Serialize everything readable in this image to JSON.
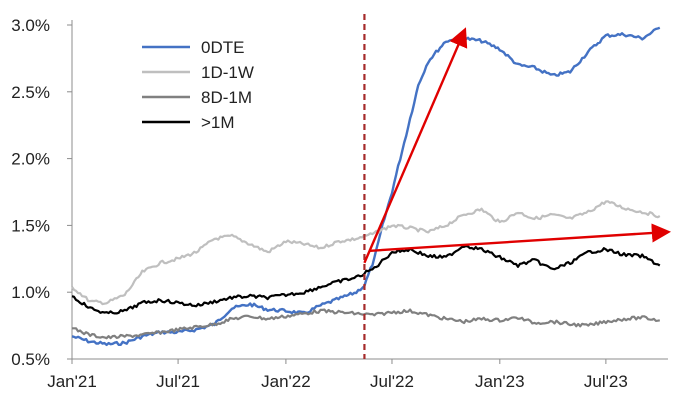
{
  "chart_data": {
    "type": "line",
    "ylim": [
      0.5,
      3.0
    ],
    "ytick_labels": [
      "0.5%",
      "1.0%",
      "1.5%",
      "2.0%",
      "2.5%",
      "3.0%"
    ],
    "ytick_values": [
      0.5,
      1.0,
      1.5,
      2.0,
      2.5,
      3.0
    ],
    "xlim": [
      "2021-01-01",
      "2023-10-15"
    ],
    "xtick_labels": [
      "Jan'21",
      "Jul'21",
      "Jan'22",
      "Jul'22",
      "Jan'23",
      "Jul'23"
    ],
    "xtick_dates": [
      "2021-01-01",
      "2021-07-01",
      "2022-01-01",
      "2022-07-01",
      "2023-01-01",
      "2023-07-01"
    ],
    "grid": false,
    "legend_position": "top-left",
    "vertical_marker": {
      "date": "2022-05-15",
      "color": "#a52a2a",
      "style": "dashed"
    },
    "arrows": [
      {
        "from": {
          "date": "2022-05-15",
          "value": 1.22
        },
        "to": {
          "date": "2022-11-01",
          "value": 2.95
        },
        "color": "#e00000"
      },
      {
        "from": {
          "date": "2022-05-25",
          "value": 1.31
        },
        "to": {
          "date": "2023-10-12",
          "value": 1.45
        },
        "color": "#e00000"
      }
    ],
    "series": [
      {
        "name": "0DTE",
        "color": "#4472c4",
        "points": [
          [
            "2021-01-01",
            0.67
          ],
          [
            "2021-02-01",
            0.63
          ],
          [
            "2021-03-01",
            0.61
          ],
          [
            "2021-04-01",
            0.62
          ],
          [
            "2021-05-01",
            0.67
          ],
          [
            "2021-06-01",
            0.7
          ],
          [
            "2021-07-01",
            0.7
          ],
          [
            "2021-08-01",
            0.72
          ],
          [
            "2021-09-01",
            0.76
          ],
          [
            "2021-10-01",
            0.88
          ],
          [
            "2021-11-01",
            0.91
          ],
          [
            "2021-12-01",
            0.87
          ],
          [
            "2022-01-01",
            0.86
          ],
          [
            "2022-02-01",
            0.84
          ],
          [
            "2022-03-01",
            0.9
          ],
          [
            "2022-04-01",
            0.95
          ],
          [
            "2022-05-01",
            1.0
          ],
          [
            "2022-05-15",
            1.05
          ],
          [
            "2022-06-01",
            1.25
          ],
          [
            "2022-06-15",
            1.5
          ],
          [
            "2022-07-01",
            1.75
          ],
          [
            "2022-07-15",
            2.0
          ],
          [
            "2022-08-01",
            2.3
          ],
          [
            "2022-08-15",
            2.55
          ],
          [
            "2022-09-01",
            2.73
          ],
          [
            "2022-10-01",
            2.88
          ],
          [
            "2022-11-01",
            2.9
          ],
          [
            "2022-12-01",
            2.88
          ],
          [
            "2023-01-01",
            2.82
          ],
          [
            "2023-02-01",
            2.7
          ],
          [
            "2023-03-01",
            2.68
          ],
          [
            "2023-04-01",
            2.62
          ],
          [
            "2023-05-01",
            2.65
          ],
          [
            "2023-06-01",
            2.8
          ],
          [
            "2023-07-01",
            2.92
          ],
          [
            "2023-08-01",
            2.93
          ],
          [
            "2023-09-01",
            2.9
          ],
          [
            "2023-10-01",
            2.98
          ]
        ]
      },
      {
        "name": "1D-1W",
        "color": "#bfbfbf",
        "points": [
          [
            "2021-01-01",
            1.04
          ],
          [
            "2021-02-01",
            0.93
          ],
          [
            "2021-03-01",
            0.92
          ],
          [
            "2021-04-01",
            0.98
          ],
          [
            "2021-05-01",
            1.15
          ],
          [
            "2021-06-01",
            1.22
          ],
          [
            "2021-07-01",
            1.25
          ],
          [
            "2021-08-01",
            1.3
          ],
          [
            "2021-09-01",
            1.4
          ],
          [
            "2021-10-01",
            1.42
          ],
          [
            "2021-11-01",
            1.36
          ],
          [
            "2021-12-01",
            1.3
          ],
          [
            "2022-01-01",
            1.38
          ],
          [
            "2022-02-01",
            1.36
          ],
          [
            "2022-03-01",
            1.33
          ],
          [
            "2022-04-01",
            1.38
          ],
          [
            "2022-05-01",
            1.4
          ],
          [
            "2022-06-01",
            1.44
          ],
          [
            "2022-07-01",
            1.5
          ],
          [
            "2022-08-01",
            1.48
          ],
          [
            "2022-09-01",
            1.45
          ],
          [
            "2022-10-01",
            1.5
          ],
          [
            "2022-11-01",
            1.58
          ],
          [
            "2022-12-01",
            1.62
          ],
          [
            "2023-01-01",
            1.52
          ],
          [
            "2023-02-01",
            1.6
          ],
          [
            "2023-03-01",
            1.55
          ],
          [
            "2023-04-01",
            1.58
          ],
          [
            "2023-05-01",
            1.55
          ],
          [
            "2023-06-01",
            1.6
          ],
          [
            "2023-07-01",
            1.68
          ],
          [
            "2023-08-01",
            1.63
          ],
          [
            "2023-09-01",
            1.6
          ],
          [
            "2023-10-01",
            1.57
          ]
        ]
      },
      {
        "name": "8D-1M",
        "color": "#808080",
        "points": [
          [
            "2021-01-01",
            0.73
          ],
          [
            "2021-02-01",
            0.68
          ],
          [
            "2021-03-01",
            0.66
          ],
          [
            "2021-04-01",
            0.67
          ],
          [
            "2021-05-01",
            0.68
          ],
          [
            "2021-06-01",
            0.7
          ],
          [
            "2021-07-01",
            0.72
          ],
          [
            "2021-08-01",
            0.74
          ],
          [
            "2021-09-01",
            0.76
          ],
          [
            "2021-10-01",
            0.8
          ],
          [
            "2021-11-01",
            0.82
          ],
          [
            "2021-12-01",
            0.8
          ],
          [
            "2022-01-01",
            0.82
          ],
          [
            "2022-02-01",
            0.84
          ],
          [
            "2022-03-01",
            0.86
          ],
          [
            "2022-04-01",
            0.85
          ],
          [
            "2022-05-01",
            0.84
          ],
          [
            "2022-06-01",
            0.83
          ],
          [
            "2022-07-01",
            0.85
          ],
          [
            "2022-08-01",
            0.86
          ],
          [
            "2022-09-01",
            0.83
          ],
          [
            "2022-10-01",
            0.8
          ],
          [
            "2022-11-01",
            0.78
          ],
          [
            "2022-12-01",
            0.8
          ],
          [
            "2023-01-01",
            0.79
          ],
          [
            "2023-02-01",
            0.81
          ],
          [
            "2023-03-01",
            0.77
          ],
          [
            "2023-04-01",
            0.78
          ],
          [
            "2023-05-01",
            0.76
          ],
          [
            "2023-06-01",
            0.75
          ],
          [
            "2023-07-01",
            0.78
          ],
          [
            "2023-08-01",
            0.8
          ],
          [
            "2023-09-01",
            0.81
          ],
          [
            "2023-10-01",
            0.79
          ]
        ]
      },
      {
        "name": ">1M",
        "color": "#000000",
        "points": [
          [
            "2021-01-01",
            0.97
          ],
          [
            "2021-02-01",
            0.88
          ],
          [
            "2021-03-01",
            0.84
          ],
          [
            "2021-04-01",
            0.86
          ],
          [
            "2021-05-01",
            0.92
          ],
          [
            "2021-06-01",
            0.94
          ],
          [
            "2021-07-01",
            0.92
          ],
          [
            "2021-08-01",
            0.9
          ],
          [
            "2021-09-01",
            0.93
          ],
          [
            "2021-10-01",
            0.96
          ],
          [
            "2021-11-01",
            0.97
          ],
          [
            "2021-12-01",
            0.96
          ],
          [
            "2022-01-01",
            0.98
          ],
          [
            "2022-02-01",
            1.0
          ],
          [
            "2022-03-01",
            1.04
          ],
          [
            "2022-04-01",
            1.08
          ],
          [
            "2022-05-01",
            1.11
          ],
          [
            "2022-06-01",
            1.18
          ],
          [
            "2022-07-01",
            1.3
          ],
          [
            "2022-08-01",
            1.32
          ],
          [
            "2022-09-01",
            1.27
          ],
          [
            "2022-10-01",
            1.26
          ],
          [
            "2022-11-01",
            1.35
          ],
          [
            "2022-12-01",
            1.32
          ],
          [
            "2023-01-01",
            1.26
          ],
          [
            "2023-02-01",
            1.2
          ],
          [
            "2023-03-01",
            1.24
          ],
          [
            "2023-04-01",
            1.17
          ],
          [
            "2023-05-01",
            1.22
          ],
          [
            "2023-06-01",
            1.3
          ],
          [
            "2023-07-01",
            1.32
          ],
          [
            "2023-08-01",
            1.28
          ],
          [
            "2023-09-01",
            1.27
          ],
          [
            "2023-10-01",
            1.2
          ]
        ]
      }
    ]
  }
}
